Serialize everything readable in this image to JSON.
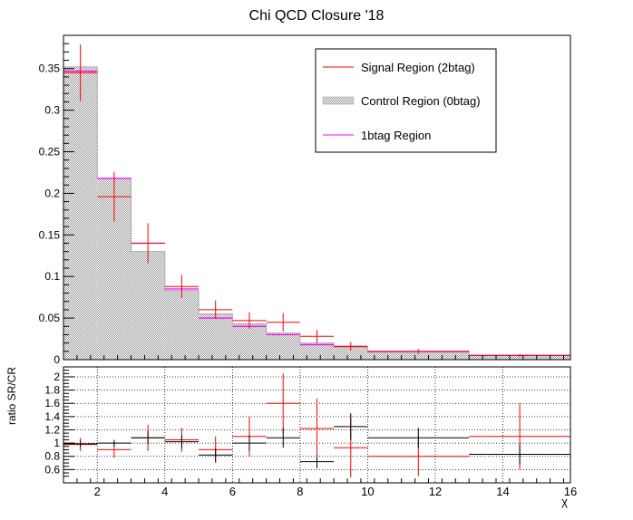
{
  "chart_data": [
    {
      "type": "histogram",
      "title": "Chi QCD Closure '18",
      "xlabel": "",
      "ylabel": "",
      "xlim": [
        1,
        16
      ],
      "ylim": [
        0,
        0.39
      ],
      "yticks": [
        0,
        0.05,
        0.1,
        0.15,
        0.2,
        0.25,
        0.3,
        0.35
      ],
      "ytick_labels": [
        "0",
        "0.05",
        "0.1",
        "0.15",
        "0.2",
        "0.25",
        "0.3",
        "0.35"
      ],
      "bin_edges": [
        1,
        2,
        3,
        4,
        5,
        6,
        7,
        8,
        9,
        10,
        13,
        16
      ],
      "series": [
        {
          "name": "Signal Region (2btag)",
          "color": "#ff0000",
          "style": "points-with-errors",
          "values": [
            0.345,
            0.196,
            0.14,
            0.088,
            0.06,
            0.047,
            0.045,
            0.028,
            0.016,
            0.01,
            0.005
          ],
          "errors": [
            0.034,
            0.03,
            0.024,
            0.014,
            0.011,
            0.01,
            0.011,
            0.008,
            0.005,
            0.003,
            0.002
          ]
        },
        {
          "name": "Control Region (0btag)",
          "color": "#888888",
          "style": "hatched-fill",
          "values": [
            0.352,
            0.218,
            0.13,
            0.083,
            0.055,
            0.043,
            0.032,
            0.02,
            0.015,
            0.009,
            0.005
          ]
        },
        {
          "name": "1btag Region",
          "color": "#ff00ff",
          "style": "step-line",
          "values": [
            0.347,
            0.218,
            0.14,
            0.085,
            0.05,
            0.04,
            0.03,
            0.018,
            0.016,
            0.01,
            0.005
          ]
        }
      ],
      "legend": "top-right",
      "grid": false
    },
    {
      "type": "ratio",
      "xlabel": "χ",
      "ylabel": "ratio SR/CR",
      "xlim": [
        1,
        16
      ],
      "ylim": [
        0.4,
        2.15
      ],
      "xticks": [
        2,
        4,
        6,
        8,
        10,
        12,
        14,
        16
      ],
      "xtick_labels": [
        "2",
        "4",
        "6",
        "8",
        "10",
        "12",
        "14",
        "16"
      ],
      "yticks": [
        0.6,
        0.8,
        1,
        1.2,
        1.4,
        1.6,
        1.8,
        2
      ],
      "ytick_labels": [
        "0.6",
        "0.8",
        "1",
        "1.2",
        "1.4",
        "1.6",
        "1.8",
        "2"
      ],
      "bin_edges": [
        1,
        2,
        3,
        4,
        5,
        6,
        7,
        8,
        9,
        10,
        13,
        16
      ],
      "series": [
        {
          "name": "",
          "color": "#ff0000",
          "values": [
            0.98,
            0.9,
            1.08,
            1.05,
            0.9,
            1.1,
            1.6,
            1.22,
            0.93,
            0.8,
            1.1
          ],
          "errors": [
            0.1,
            0.12,
            0.2,
            0.18,
            0.2,
            0.3,
            0.45,
            0.45,
            0.45,
            0.3,
            0.5
          ]
        },
        {
          "name": "",
          "color": "#000000",
          "values": [
            0.99,
            1.0,
            1.08,
            1.02,
            0.82,
            1.0,
            1.08,
            0.72,
            1.25,
            1.08,
            0.83
          ],
          "errors": [
            0.05,
            0.05,
            0.1,
            0.1,
            0.1,
            0.12,
            0.15,
            0.1,
            0.2,
            0.15,
            0.15
          ]
        }
      ],
      "grid": true
    }
  ]
}
